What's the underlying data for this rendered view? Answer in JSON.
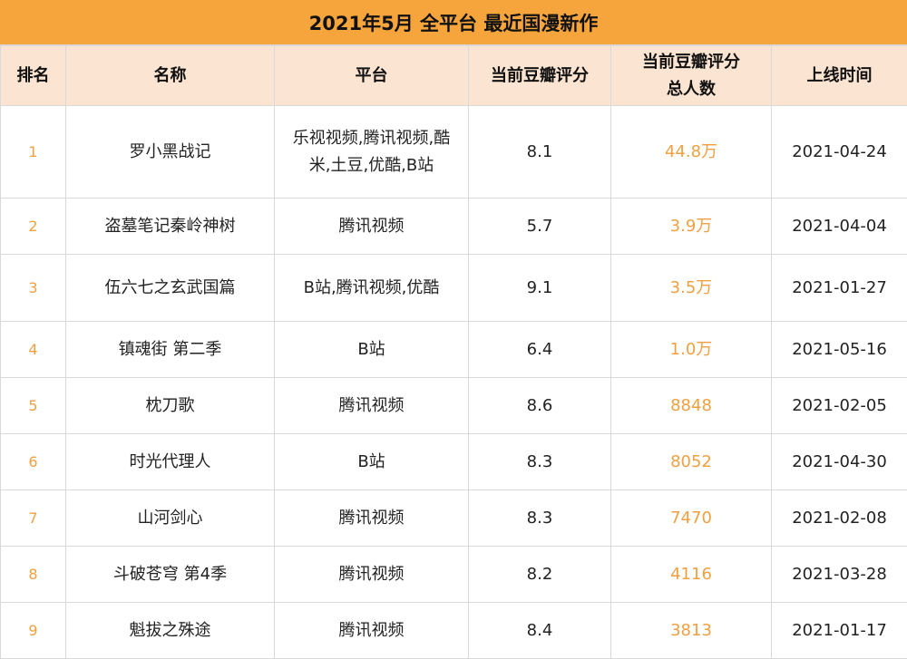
{
  "title": "2021年5月 全平台 最近国漫新作",
  "headers": {
    "rank": "排名",
    "name": "名称",
    "platform": "平台",
    "score": "当前豆瓣评分",
    "total": "当前豆瓣评分总人数",
    "date": "上线时间"
  },
  "colors": {
    "title_bg": "#f5a53c",
    "header_bg": "#fbe4d1",
    "accent_text": "#f0a040"
  },
  "rows": [
    {
      "rank": "1",
      "name": "罗小黑战记",
      "platform": "乐视视频,腾讯视频,酷米,土豆,优酷,B站",
      "score": "8.1",
      "total": "44.8万",
      "date": "2021-04-24"
    },
    {
      "rank": "2",
      "name": "盗墓笔记秦岭神树",
      "platform": "腾讯视频",
      "score": "5.7",
      "total": "3.9万",
      "date": "2021-04-04"
    },
    {
      "rank": "3",
      "name": "伍六七之玄武国篇",
      "platform": "B站,腾讯视频,优酷",
      "score": "9.1",
      "total": "3.5万",
      "date": "2021-01-27"
    },
    {
      "rank": "4",
      "name": "镇魂街 第二季",
      "platform": "B站",
      "score": "6.4",
      "total": "1.0万",
      "date": "2021-05-16"
    },
    {
      "rank": "5",
      "name": "枕刀歌",
      "platform": "腾讯视频",
      "score": "8.6",
      "total": "8848",
      "date": "2021-02-05"
    },
    {
      "rank": "6",
      "name": "时光代理人",
      "platform": "B站",
      "score": "8.3",
      "total": "8052",
      "date": "2021-04-30"
    },
    {
      "rank": "7",
      "name": "山河剑心",
      "platform": "腾讯视频",
      "score": "8.3",
      "total": "7470",
      "date": "2021-02-08"
    },
    {
      "rank": "8",
      "name": "斗破苍穹 第4季",
      "platform": "腾讯视频",
      "score": "8.2",
      "total": "4116",
      "date": "2021-03-28"
    },
    {
      "rank": "9",
      "name": "魁拔之殊途",
      "platform": "腾讯视频",
      "score": "8.4",
      "total": "3813",
      "date": "2021-01-17"
    }
  ]
}
